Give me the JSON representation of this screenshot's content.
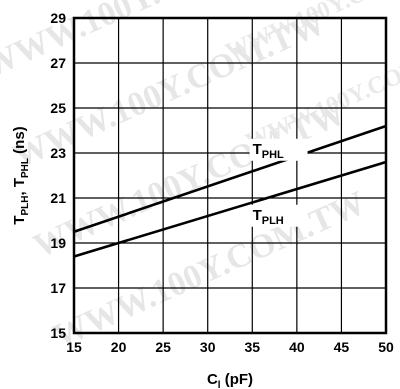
{
  "watermark": {
    "text": "WWW.100Y.COM.TW"
  },
  "chart_data": {
    "type": "line",
    "x": [
      15,
      50
    ],
    "xlim": [
      15,
      50
    ],
    "ylim": [
      15,
      29
    ],
    "xticks": [
      15,
      20,
      25,
      30,
      35,
      40,
      45,
      50
    ],
    "yticks": [
      15,
      17,
      19,
      21,
      23,
      25,
      27,
      29
    ],
    "grid": true,
    "xlabel": {
      "main": "C",
      "sub": "l",
      "unit": " (pF)"
    },
    "ylabel": {
      "main1": "T",
      "sub1": "PLH",
      "mid": ", T",
      "sub2": "PHL",
      "unit": " (ns)"
    },
    "series": [
      {
        "name": "TPHL",
        "label_main": "T",
        "label_sub": "PHL",
        "values": [
          19.5,
          24.2
        ],
        "label_at_x": 37.5,
        "label_side": "above"
      },
      {
        "name": "TPLH",
        "label_main": "T",
        "label_sub": "PLH",
        "values": [
          18.4,
          22.6
        ],
        "label_at_x": 37.5,
        "label_side": "below"
      }
    ]
  }
}
